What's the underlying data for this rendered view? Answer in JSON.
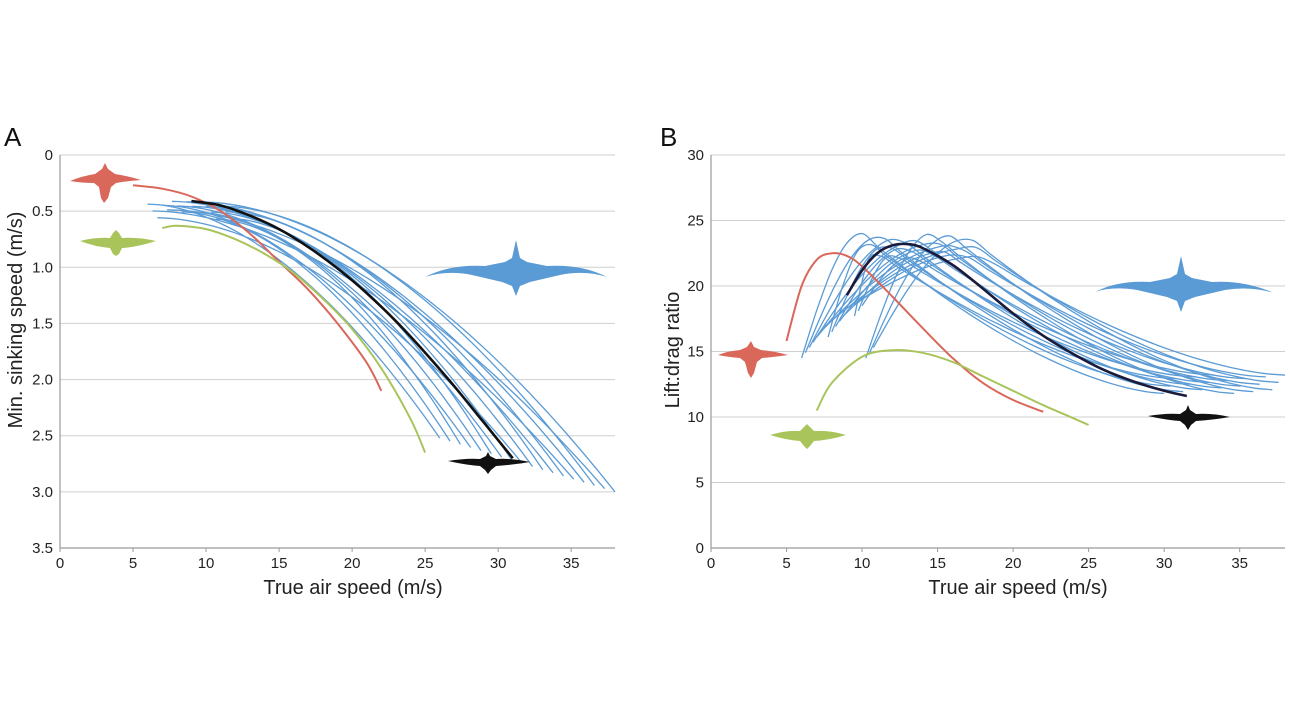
{
  "chart_data": [
    {
      "panel": "A",
      "type": "line",
      "xlabel": "True air speed (m/s)",
      "ylabel": "Min. sinking speed (m/s)",
      "xlim": [
        0,
        38
      ],
      "ylim": [
        3.5,
        0
      ],
      "y_inverted": true,
      "xticks": [
        "0",
        "5",
        "10",
        "15",
        "20",
        "25",
        "30",
        "35"
      ],
      "yticks": [
        "0",
        "0.5",
        "1.0",
        "1.5",
        "2.0",
        "2.5",
        "3.0",
        "3.5"
      ],
      "grid": "horizontal",
      "colors": {
        "red": "#d9675a",
        "green": "#a9c45a",
        "blue": "#5b9bd5",
        "black": "#111111"
      },
      "series": [
        {
          "name": "red-bird",
          "color": "red",
          "x": [
            5,
            7,
            9,
            11,
            13,
            15,
            17,
            19,
            21,
            22
          ],
          "y": [
            0.27,
            0.3,
            0.37,
            0.5,
            0.7,
            0.95,
            1.2,
            1.5,
            1.85,
            2.1
          ]
        },
        {
          "name": "green-bird",
          "color": "green",
          "x": [
            7,
            8,
            10,
            12,
            14,
            16,
            18,
            20,
            22,
            24,
            25
          ],
          "y": [
            0.65,
            0.63,
            0.66,
            0.75,
            0.88,
            1.05,
            1.28,
            1.55,
            1.9,
            2.35,
            2.65
          ]
        },
        {
          "name": "black-bird",
          "color": "black",
          "x": [
            9,
            11,
            13,
            15,
            17,
            19,
            21,
            23,
            25,
            27,
            29,
            31
          ],
          "y": [
            0.41,
            0.45,
            0.54,
            0.66,
            0.82,
            1.01,
            1.23,
            1.48,
            1.76,
            2.06,
            2.38,
            2.7
          ]
        }
      ],
      "blue_family": {
        "count": 18,
        "x_start_range": [
          6,
          12
        ],
        "x_end_range": [
          26,
          38
        ],
        "y_start_range": [
          0.36,
          0.62
        ],
        "y_end_range": [
          2.2,
          3.0
        ]
      }
    },
    {
      "panel": "B",
      "type": "line",
      "xlabel": "True air speed (m/s)",
      "ylabel": "Lift:drag ratio",
      "xlim": [
        0,
        38
      ],
      "ylim": [
        0,
        30
      ],
      "xticks": [
        "0",
        "5",
        "10",
        "15",
        "20",
        "25",
        "30",
        "35"
      ],
      "yticks": [
        "0",
        "5",
        "10",
        "15",
        "20",
        "25",
        "30"
      ],
      "grid": "horizontal",
      "colors": {
        "red": "#d9675a",
        "green": "#a9c45a",
        "blue": "#5b9bd5",
        "black": "#1a1a3a"
      },
      "series": [
        {
          "name": "red-bird",
          "color": "red",
          "x": [
            5,
            6,
            7,
            8,
            9,
            10,
            12,
            14,
            16,
            18,
            20,
            22
          ],
          "y": [
            15.8,
            20.0,
            22.0,
            22.5,
            22.3,
            21.5,
            19.2,
            16.8,
            14.5,
            12.6,
            11.3,
            10.4
          ]
        },
        {
          "name": "green-bird",
          "color": "green",
          "x": [
            7,
            8,
            10,
            12,
            14,
            16,
            18,
            20,
            22,
            24,
            25
          ],
          "y": [
            10.5,
            12.6,
            14.6,
            15.1,
            14.9,
            14.2,
            13.1,
            12.0,
            10.9,
            9.9,
            9.4
          ]
        },
        {
          "name": "black-bird",
          "color": "black",
          "x": [
            9,
            10,
            11,
            12,
            13,
            14,
            16,
            18,
            20,
            22,
            24,
            26,
            28,
            30,
            31.5
          ],
          "y": [
            19.3,
            21.2,
            22.5,
            23.1,
            23.2,
            22.9,
            21.6,
            19.8,
            17.9,
            16.2,
            14.8,
            13.6,
            12.7,
            12.0,
            11.6
          ]
        }
      ],
      "blue_family": {
        "count": 20,
        "x_start_range": [
          6,
          11
        ],
        "x_end_range": [
          30,
          38
        ],
        "peak_x_range": [
          10,
          18
        ],
        "peak_y_range": [
          21.5,
          24.0
        ],
        "y_end_range": [
          11.8,
          13.2
        ]
      }
    }
  ]
}
